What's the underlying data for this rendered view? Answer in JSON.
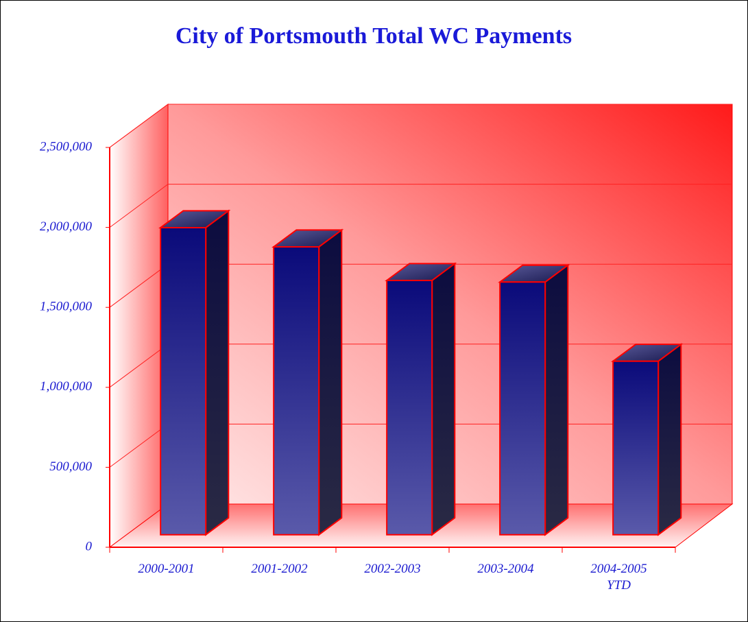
{
  "chart_data": {
    "type": "bar3d",
    "title": "City of Portsmouth Total WC Payments",
    "categories": [
      "2000-2001",
      "2001-2002",
      "2002-2003",
      "2003-2004",
      "2004-2005 YTD"
    ],
    "values": [
      1920000,
      1800000,
      1590000,
      1580000,
      1085000
    ],
    "color": "#0a0a7a",
    "ylim": [
      0,
      2500000
    ],
    "yticks": [
      0,
      {
        "value": 500000,
        "label": "500,000"
      },
      {
        "value": 1000000,
        "label": "1,000,000"
      },
      {
        "value": 1500000,
        "label": "1,500,000"
      },
      {
        "value": 2000000,
        "label": "2,000,000"
      },
      {
        "value": 2500000,
        "label": "2,500,000"
      }
    ],
    "grid": true
  }
}
